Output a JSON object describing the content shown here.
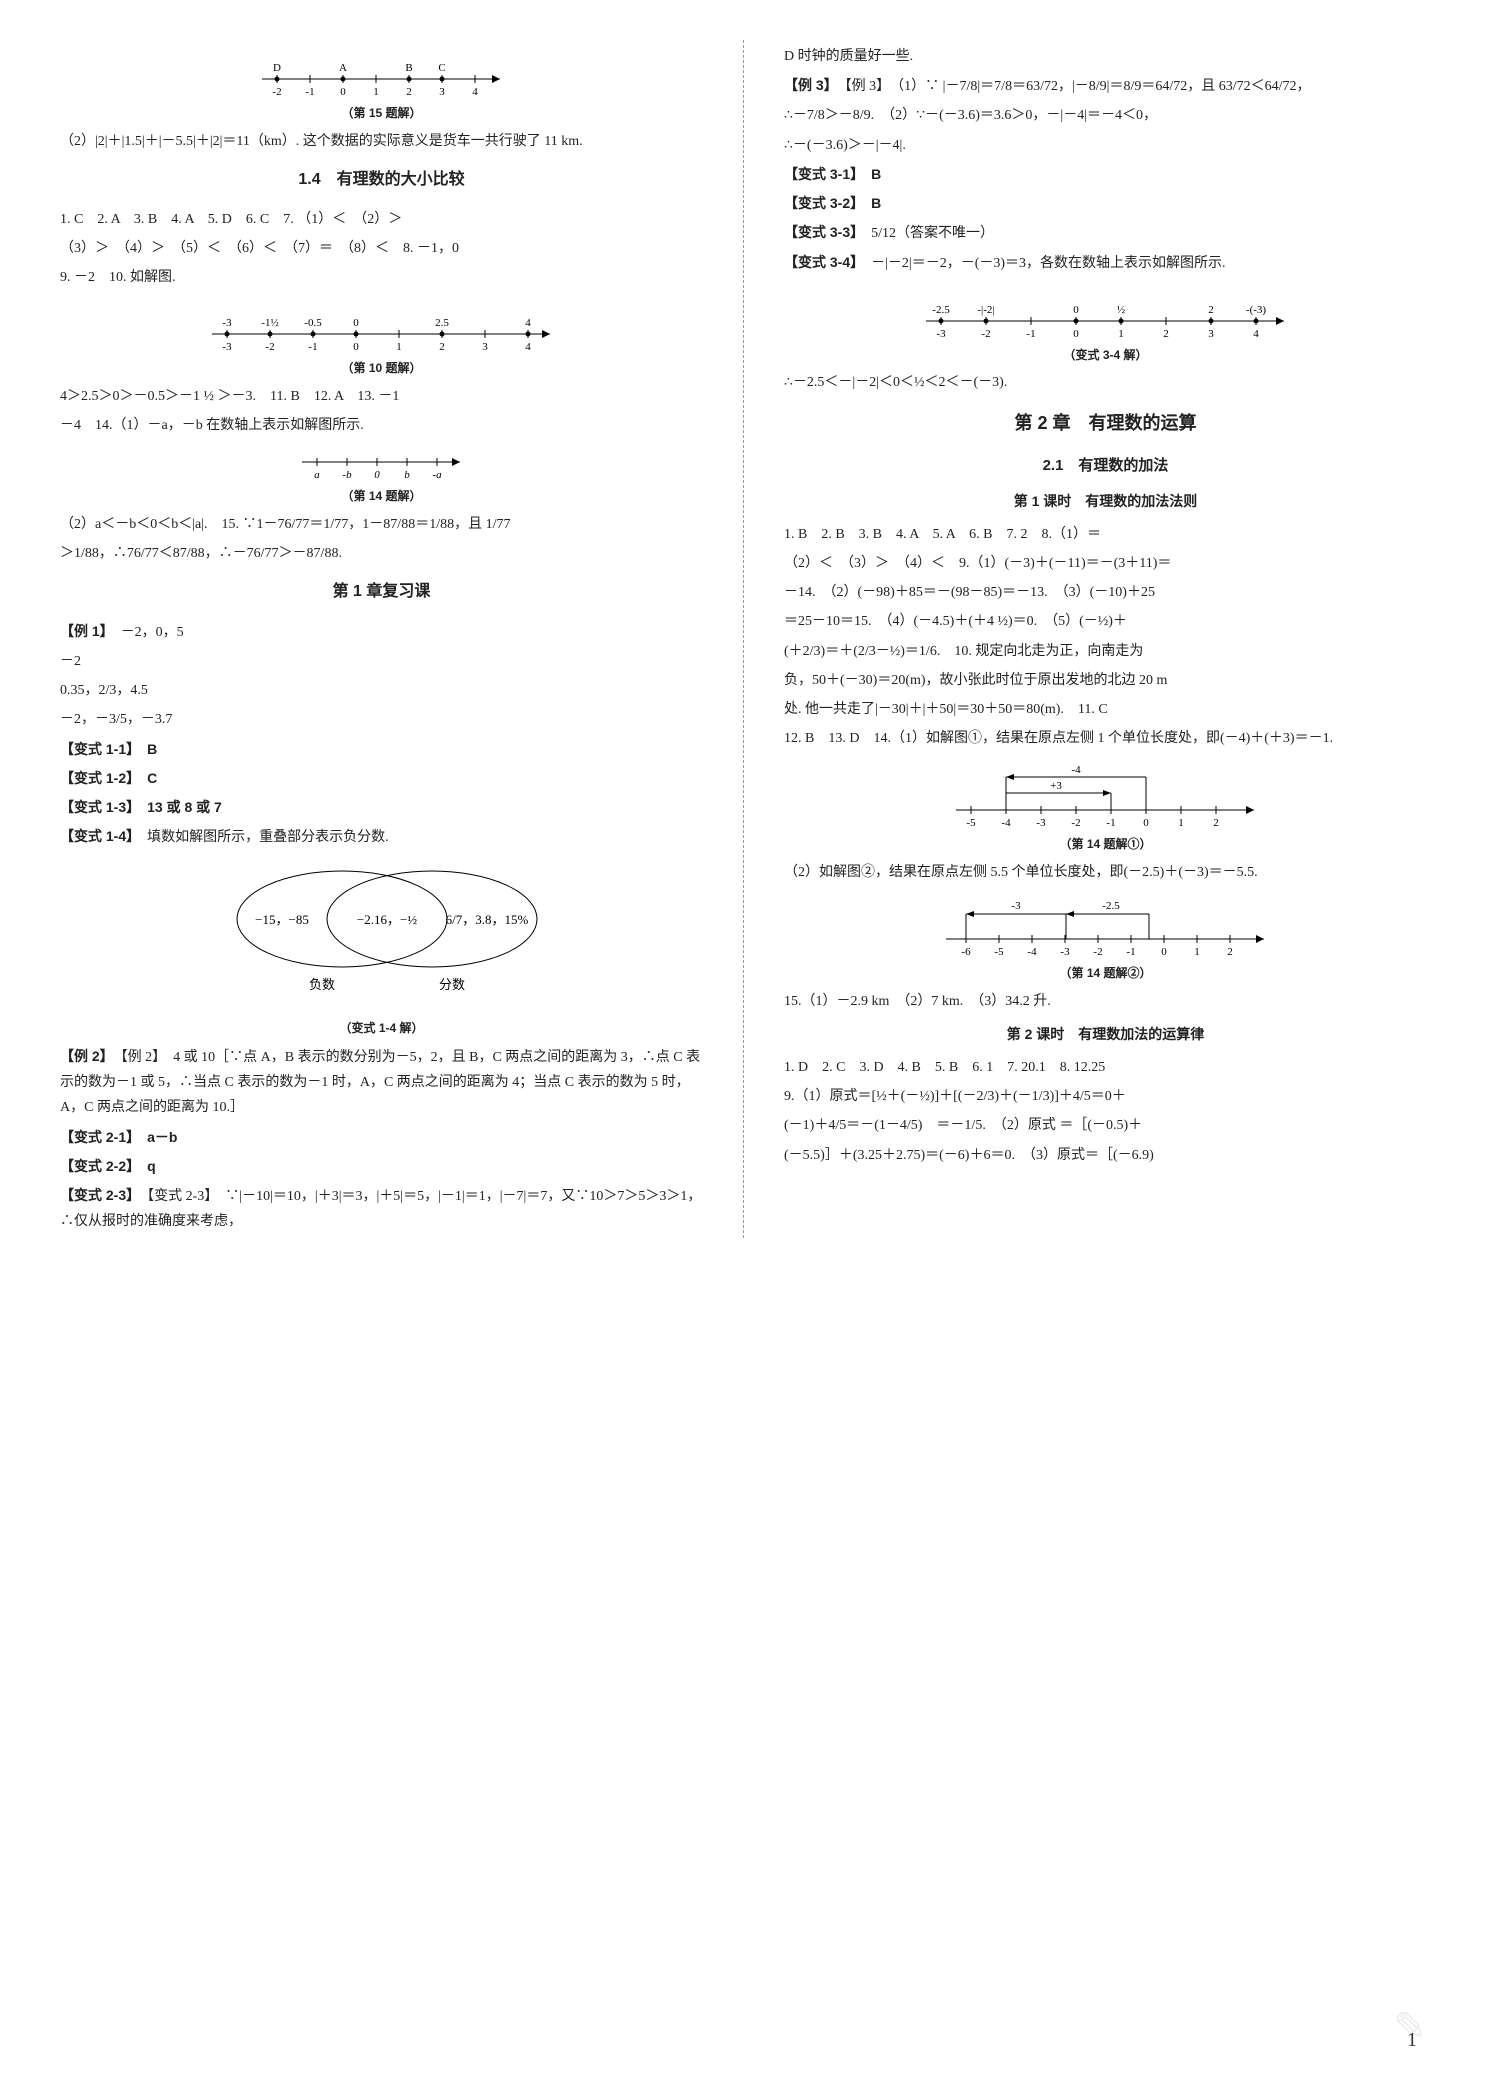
{
  "left": {
    "fig15": {
      "caption": "（第 15 题解）",
      "labels_top": [
        "D",
        "",
        "A",
        "",
        "B",
        "C",
        ""
      ],
      "ticks": [
        -2,
        -1,
        0,
        1,
        2,
        3,
        4
      ]
    },
    "p15_2": "（2）|2|＋|1.5|＋|－5.5|＋|2|＝11（km）. 这个数据的实际意义是货车一共行驶了 11 km.",
    "sec14_title": "1.4　有理数的大小比较",
    "ans14_line1": "1. C　2. A　3. B　4. A　5. D　6. C　7. （1）＜　（2）＞",
    "ans14_line2": "（3）＞　（4）＞　（5）＜　（6）＜　（7）＝　（8）＜　8. －1，0",
    "ans14_line3": "9. －2　10. 如解图.",
    "fig10": {
      "caption": "（第 10 题解）",
      "upper": [
        "-3",
        "-1½",
        "-0.5",
        "0",
        "",
        "2.5",
        "",
        "4"
      ],
      "ticks": [
        -3,
        -2,
        -1,
        0,
        1,
        2,
        3,
        4
      ]
    },
    "p10_after": "4＞2.5＞0＞－0.5＞－1 ½ ＞－3.　11. B　12. A　13. －1",
    "p14_line": "－4　14.（1）－a，－b 在数轴上表示如解图所示.",
    "fig14": {
      "caption": "（第 14 题解）",
      "labels": [
        "a",
        "-b",
        "0",
        "b",
        "-a"
      ]
    },
    "p14_2": "（2）a＜－b＜0＜b＜|a|.　15. ∵1－76/77＝1/77，1－87/88＝1/88，且 1/77",
    "p14_2b": "＞1/88，∴76/77＜87/88，∴－76/77＞－87/88.",
    "review_title": "第 1 章复习课",
    "ex1_label": "【例 1】",
    "ex1_l1": "－2，0，5",
    "ex1_l2": "－2",
    "ex1_l3": "0.35，2/3，4.5",
    "ex1_l4": "－2，－3/5，－3.7",
    "var11": "【变式 1-1】　B",
    "var12": "【变式 1-2】　C",
    "var13": "【变式 1-3】　13 或 8 或 7",
    "var14": "【变式 1-4】　填数如解图所示，重叠部分表示负分数.",
    "venn": {
      "left": "−15，−85",
      "mid": "−2.16，−½",
      "right": "6/7，3.8，15%",
      "llabel": "负数",
      "rlabel": "分数",
      "caption": "（变式 1-4 解）"
    },
    "ex2": "【例 2】　4 或 10［∵点 A，B 表示的数分别为－5，2，且 B，C 两点之间的距离为 3，∴点 C 表示的数为－1 或 5，∴当点 C 表示的数为－1 时，A，C 两点之间的距离为 4；当点 C 表示的数为 5 时，A，C 两点之间的距离为 10.］",
    "var21": "【变式 2-1】　a－b",
    "var22": "【变式 2-2】　q",
    "var23": "【变式 2-3】　∵|－10|＝10，|＋3|＝3，|＋5|＝5，|－1|＝1，|－7|＝7，又∵10＞7＞5＞3＞1，∴仅从报时的准确度来考虑，"
  },
  "right": {
    "top": "D 时钟的质量好一些.",
    "ex3": "【例 3】　（1）∵ |－7/8|＝7/8＝63/72，|－8/9|＝8/9＝64/72，且 63/72＜64/72，",
    "ex3b": "∴－7/8＞－8/9.　（2）∵－(－3.6)＝3.6＞0，－|－4|＝－4＜0，",
    "ex3c": "∴－(－3.6)＞－|－4|.",
    "var31": "【变式 3-1】　B",
    "var32": "【变式 3-2】　B",
    "var33": "【变式 3-3】　5/12（答案不唯一）",
    "var34": "【变式 3-4】　－|－2|＝－2，－(－3)＝3，各数在数轴上表示如解图所示.",
    "fig34": {
      "caption": "（变式 3-4 解）",
      "upper": [
        "-2.5",
        "-|-2|",
        "",
        "0",
        "½",
        "",
        "2",
        "-(-3)",
        ""
      ],
      "ticks": [
        -3,
        -2,
        -1,
        0,
        1,
        2,
        3,
        4
      ]
    },
    "concl34": "∴－2.5＜－|－2|＜0＜½＜2＜－(－3).",
    "ch2_title": "第 2 章　有理数的运算",
    "s21_title": "2.1　有理数的加法",
    "lesson1": "第 1 课时　有理数的加法法则",
    "a21_l1": "1. B　2. B　3. B　4. A　5. A　6. B　7. 2　8.（1）＝",
    "a21_l2": "（2）＜　（3）＞　（4）＜　9.（1）(－3)＋(－11)＝－(3＋11)＝",
    "a21_l3": "－14.　（2）(－98)＋85＝－(98－85)＝－13.　（3）(－10)＋25",
    "a21_l4": "＝25－10＝15.　（4）(－4.5)＋(＋4 ½)＝0.　（5）(－½)＋",
    "a21_l5": "(＋2/3)＝＋(2/3－½)＝1/6.　10. 规定向北走为正，向南走为",
    "a21_l6": "负，50＋(－30)＝20(m)，故小张此时位于原出发地的北边 20 m",
    "a21_l7": "处. 他一共走了|－30|＋|＋50|＝30＋50＝80(m).　11. C",
    "a21_l8": "12. B　13. D　14.（1）如解图①，结果在原点左侧 1 个单位长度处，即(－4)＋(＋3)＝－1.",
    "fig14_1": {
      "caption": "（第 14 题解①）",
      "ticks": [
        -5,
        -4,
        -3,
        -2,
        -1,
        0,
        1,
        2
      ],
      "a": "-4",
      "b": "+3"
    },
    "p14_2": "（2）如解图②，结果在原点左侧 5.5 个单位长度处，即(－2.5)＋(－3)＝－5.5.",
    "fig14_2": {
      "caption": "（第 14 题解②）",
      "ticks": [
        -6,
        -5,
        -4,
        -3,
        -2,
        -1,
        0,
        1,
        2
      ],
      "a": "-3",
      "b": "-2.5"
    },
    "p15": "15.（1）－2.9 km　（2）7 km.　（3）34.2 升.",
    "lesson2": "第 2 课时　有理数加法的运算律",
    "a22_l1": "1. D　2. C　3. D　4. B　5. B　6. 1　7. 20.1　8. 12.25",
    "a22_l2": "9.（1）原式＝[½＋(－½)]＋[(－2/3)＋(－1/3)]＋4/5＝0＋",
    "a22_l3": "(－1)＋4/5＝－(1－4/5)　＝－1/5.　（2）原式 ＝［(－0.5)＋",
    "a22_l4": "(－5.5)］＋(3.25＋2.75)＝(－6)＋6＝0.　（3）原式＝［(－6.9)"
  },
  "page_number": "1"
}
